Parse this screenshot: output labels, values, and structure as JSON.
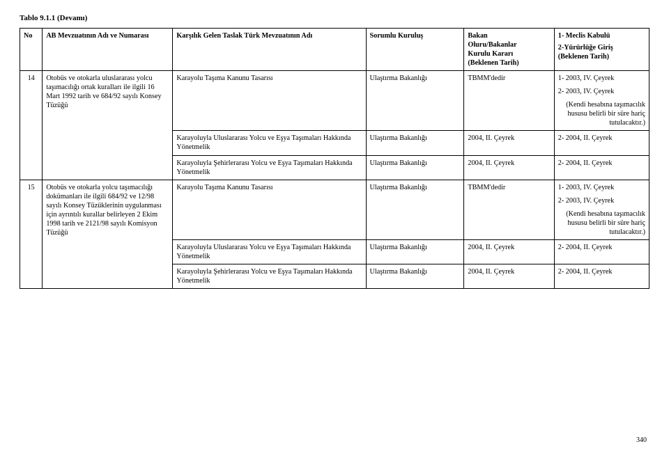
{
  "page": {
    "title": "Tablo 9.1.1 (Devamı)",
    "number": "340"
  },
  "headers": {
    "no": "No",
    "ab": "AB Mevzuatının Adı ve Numarası",
    "kars": "Karşılık Gelen Taslak Türk Mevzuatının Adı",
    "sorumlu": "Sorumlu Kuruluş",
    "bakan_l1": "Bakan",
    "bakan_l2": "Oluru/Bakanlar",
    "bakan_l3": "Kurulu Kararı",
    "bakan_l4": "(Beklenen Tarih)",
    "meclis_l1": "1- Meclis Kabulü",
    "meclis_l2": "2-Yürürlüğe Giriş",
    "meclis_l3": "(Beklenen Tarih)"
  },
  "rows": [
    {
      "no": "14",
      "ab": "Otobüs ve otokarla uluslararası yolcu taşımacılığı ortak kuralları ile ilgili 16 Mart 1992 tarih ve 684/92 sayılı Konsey Tüzüğü",
      "kars": "Karayolu Taşıma Kanunu Tasarısı",
      "sorumlu": "Ulaştırma Bakanlığı",
      "bakan": "TBMM'dedir",
      "meclis_l1": "1- 2003, IV. Çeyrek",
      "meclis_l2": "2- 2003, IV. Çeyrek",
      "meclis_note": "(Kendi hesabına taşımacılık hususu belirli bir süre hariç tutulacaktır.)"
    },
    {
      "kars": "Karayoluyla Uluslararası Yolcu ve Eşya Taşımaları Hakkında Yönetmelik",
      "sorumlu": "Ulaştırma Bakanlığı",
      "bakan": "2004, II. Çeyrek",
      "meclis": "2- 2004, II. Çeyrek"
    },
    {
      "kars": "Karayoluyla Şehirlerarası Yolcu ve Eşya Taşımaları Hakkında Yönetmelik",
      "sorumlu": "Ulaştırma Bakanlığı",
      "bakan": "2004, II. Çeyrek",
      "meclis": "2- 2004, II. Çeyrek"
    },
    {
      "no": "15",
      "ab": "Otobüs ve otokarla yolcu taşımacılığı dokümanları ile ilgili 684/92 ve 12/98 sayılı Konsey Tüzüklerinin uygulanması için ayrıntılı kurallar belirleyen 2 Ekim 1998 tarih ve 2121/98 sayılı Komisyon Tüzüğü",
      "kars": "Karayolu Taşıma Kanunu Tasarısı",
      "sorumlu": "Ulaştırma Bakanlığı",
      "bakan": "TBMM'dedir",
      "meclis_l1": "1- 2003, IV. Çeyrek",
      "meclis_l2": "2- 2003, IV. Çeyrek",
      "meclis_note": "(Kendi hesabına taşımacılık hususu belirli bir süre hariç tutulacaktır.)"
    },
    {
      "kars": "Karayoluyla Uluslararası Yolcu ve Eşya Taşımaları Hakkında Yönetmelik",
      "sorumlu": "Ulaştırma Bakanlığı",
      "bakan": "2004, II. Çeyrek",
      "meclis": "2- 2004, II. Çeyrek"
    },
    {
      "kars": "Karayoluyla Şehirlerarası Yolcu ve Eşya Taşımaları Hakkında Yönetmelik",
      "sorumlu": "Ulaştırma Bakanlığı",
      "bakan": "2004, II. Çeyrek",
      "meclis": "2- 2004, II. Çeyrek"
    }
  ]
}
